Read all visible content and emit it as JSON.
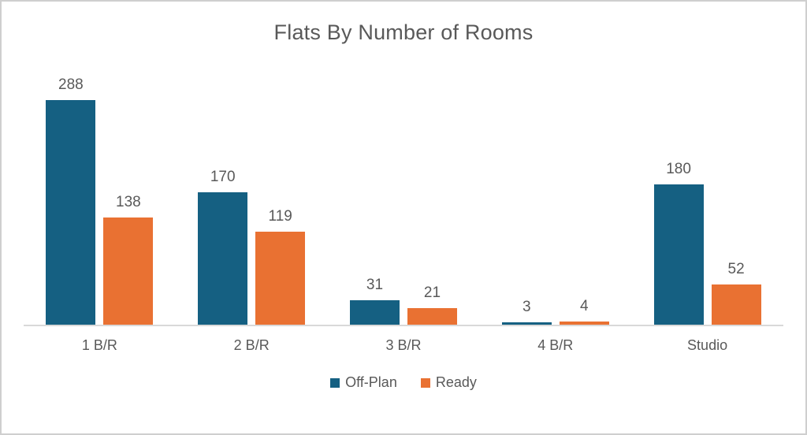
{
  "chart_data": {
    "type": "bar",
    "title": "Flats By Number of Rooms",
    "categories": [
      "1 B/R",
      "2 B/R",
      "3 B/R",
      "4 B/R",
      "Studio"
    ],
    "series": [
      {
        "name": "Off-Plan",
        "color": "#156082",
        "values": [
          288,
          170,
          31,
          3,
          180
        ]
      },
      {
        "name": "Ready",
        "color": "#E97132",
        "values": [
          138,
          119,
          21,
          4,
          52
        ]
      }
    ],
    "xlabel": "",
    "ylabel": "",
    "ylim": [
      0,
      340
    ],
    "grid": false,
    "data_labels": true,
    "legend_position": "bottom"
  },
  "colors": {
    "title_text": "#595959",
    "label_text": "#595959",
    "axis_line": "#d9d9d9",
    "frame_border": "#cfcfcf",
    "background": "#ffffff"
  }
}
